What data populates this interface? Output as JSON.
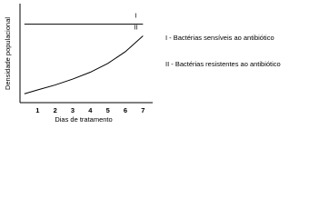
{
  "chart_data": {
    "type": "line",
    "x_label": "Dias de tratamento",
    "y_label": "Densidade populacional",
    "x": [
      0.25,
      1,
      2,
      3,
      4,
      5,
      6,
      7
    ],
    "series": [
      {
        "name": "I",
        "color": "#000000",
        "values": [
          8,
          8,
          8,
          8,
          8,
          8,
          8,
          8
        ]
      },
      {
        "name": "II",
        "color": "#000000",
        "values": [
          0.9,
          1.3,
          1.8,
          2.4,
          3.1,
          4.0,
          5.2,
          6.8
        ]
      }
    ],
    "xlim": [
      0,
      7.5
    ],
    "xticks": [
      1,
      2,
      3,
      4,
      5,
      6,
      7
    ],
    "ylim": [
      0,
      10
    ],
    "annotations": [
      "I - Bactérias sensíveis ao antibiótico",
      "II - Bactérias resistentes ao antibiótico"
    ]
  }
}
